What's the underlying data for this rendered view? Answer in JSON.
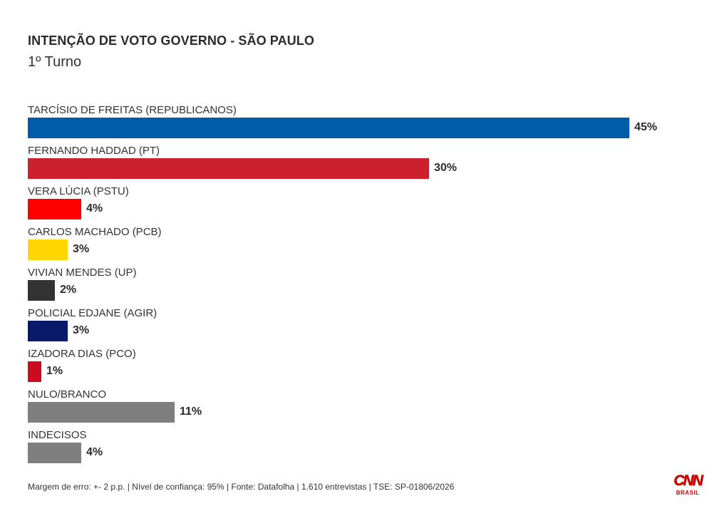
{
  "chart_data": {
    "type": "bar",
    "orientation": "horizontal",
    "title": "INTENÇÃO DE VOTO GOVERNO - SÃO PAULO",
    "subtitle": "1º Turno",
    "xlabel": "",
    "ylabel": "",
    "unit": "%",
    "xlim": [
      0,
      45
    ],
    "grid": false,
    "categories": [
      "TARCÍSIO DE FREITAS (REPUBLICANOS)",
      "FERNANDO HADDAD (PT)",
      "VERA LÚCIA (PSTU)",
      "CARLOS MACHADO (PCB)",
      "VIVIAN MENDES (UP)",
      "POLICIAL EDJANE (AGIR)",
      "IZADORA DIAS (PCO)",
      "NULO/BRANCO",
      "INDECISOS"
    ],
    "values": [
      45,
      30,
      4,
      3,
      2,
      3,
      1,
      11,
      4
    ],
    "value_labels": [
      "45%",
      "30%",
      "4%",
      "3%",
      "2%",
      "3%",
      "1%",
      "11%",
      "4%"
    ],
    "colors": [
      "#005baa",
      "#cc202f",
      "#ff0000",
      "#ffd600",
      "#333333",
      "#0a1a6b",
      "#cc0a20",
      "#7f7f7f",
      "#7f7f7f"
    ]
  },
  "footer": {
    "text": "Margem de erro: +- 2 p.p. | Nível de confiança: 95% | Fonte: Datafolha | 1.610 entrevistas | TSE: SP-01806/2026"
  },
  "logo": {
    "name": "CNN",
    "subtext": "BRASIL",
    "color": "#cc0000",
    "icon": "cnn-brasil-logo"
  }
}
